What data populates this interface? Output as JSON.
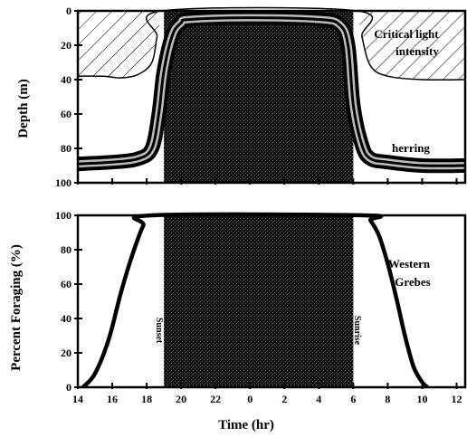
{
  "chart_data": [
    {
      "type": "area",
      "panel": "top",
      "ylabel": "Depth (m)",
      "y_inverted": true,
      "ylim": [
        100,
        0
      ],
      "y_ticks": [
        0,
        20,
        40,
        60,
        80,
        100
      ],
      "x_ticks": [
        14,
        16,
        18,
        20,
        22,
        0,
        2,
        4,
        6,
        8,
        10,
        12
      ],
      "night_shading": {
        "start": "19",
        "end": "6"
      },
      "series": [
        {
          "name": "herring",
          "x": [
            14,
            16,
            17.5,
            18.3,
            18.7,
            19,
            19.5,
            20,
            20.5,
            24,
            28,
            29.2,
            29.7,
            30,
            30.5,
            31,
            32,
            34,
            36.5
          ],
          "y": [
            89,
            88,
            86,
            80,
            60,
            35,
            14,
            7,
            5,
            4,
            5,
            8,
            20,
            55,
            78,
            86,
            88,
            90,
            90
          ]
        },
        {
          "name": "Critical light intensity",
          "x": [
            14,
            15.5,
            16.5,
            17.5,
            18.3,
            18.6,
            18.9,
            30.2,
            30.5,
            31,
            32,
            34,
            36.5
          ],
          "y": [
            38,
            38,
            39,
            37,
            30,
            15,
            0,
            0,
            15,
            32,
            38,
            40,
            40
          ]
        }
      ],
      "annotations": [
        "Critical light intensity",
        "herring"
      ]
    },
    {
      "type": "line",
      "panel": "bottom",
      "xlabel": "Time (hr)",
      "ylabel": "Percent Foraging (%)",
      "ylim": [
        0,
        100
      ],
      "y_ticks": [
        0,
        20,
        40,
        60,
        80,
        100
      ],
      "x_ticks": [
        14,
        16,
        18,
        20,
        22,
        0,
        2,
        4,
        6,
        8,
        10,
        12
      ],
      "night_shading": {
        "start": "19",
        "end": "6",
        "start_label": "Sunset",
        "end_label": "Sunrise"
      },
      "series": [
        {
          "name": "Western Grebes",
          "x": [
            14.3,
            15,
            15.8,
            16.5,
            17.2,
            17.8,
            18.3,
            30.6,
            31,
            31.5,
            32,
            32.5,
            33,
            33.5,
            34,
            34.3
          ],
          "y": [
            0,
            8,
            28,
            55,
            78,
            94,
            100,
            100,
            97,
            88,
            72,
            52,
            30,
            12,
            3,
            0
          ]
        }
      ],
      "annotations": [
        "Western Grebes"
      ]
    }
  ],
  "text": {
    "top_ylabel": "Depth (m)",
    "bottom_ylabel": "Percent Foraging (%)",
    "xlabel": "Time (hr)",
    "critical_light_1": "Critical light",
    "critical_light_2": "intensity",
    "herring": "herring",
    "grebes_1": "Western",
    "grebes_2": "Grebes",
    "sunset": "Sunset",
    "sunrise": "Sunrise"
  }
}
